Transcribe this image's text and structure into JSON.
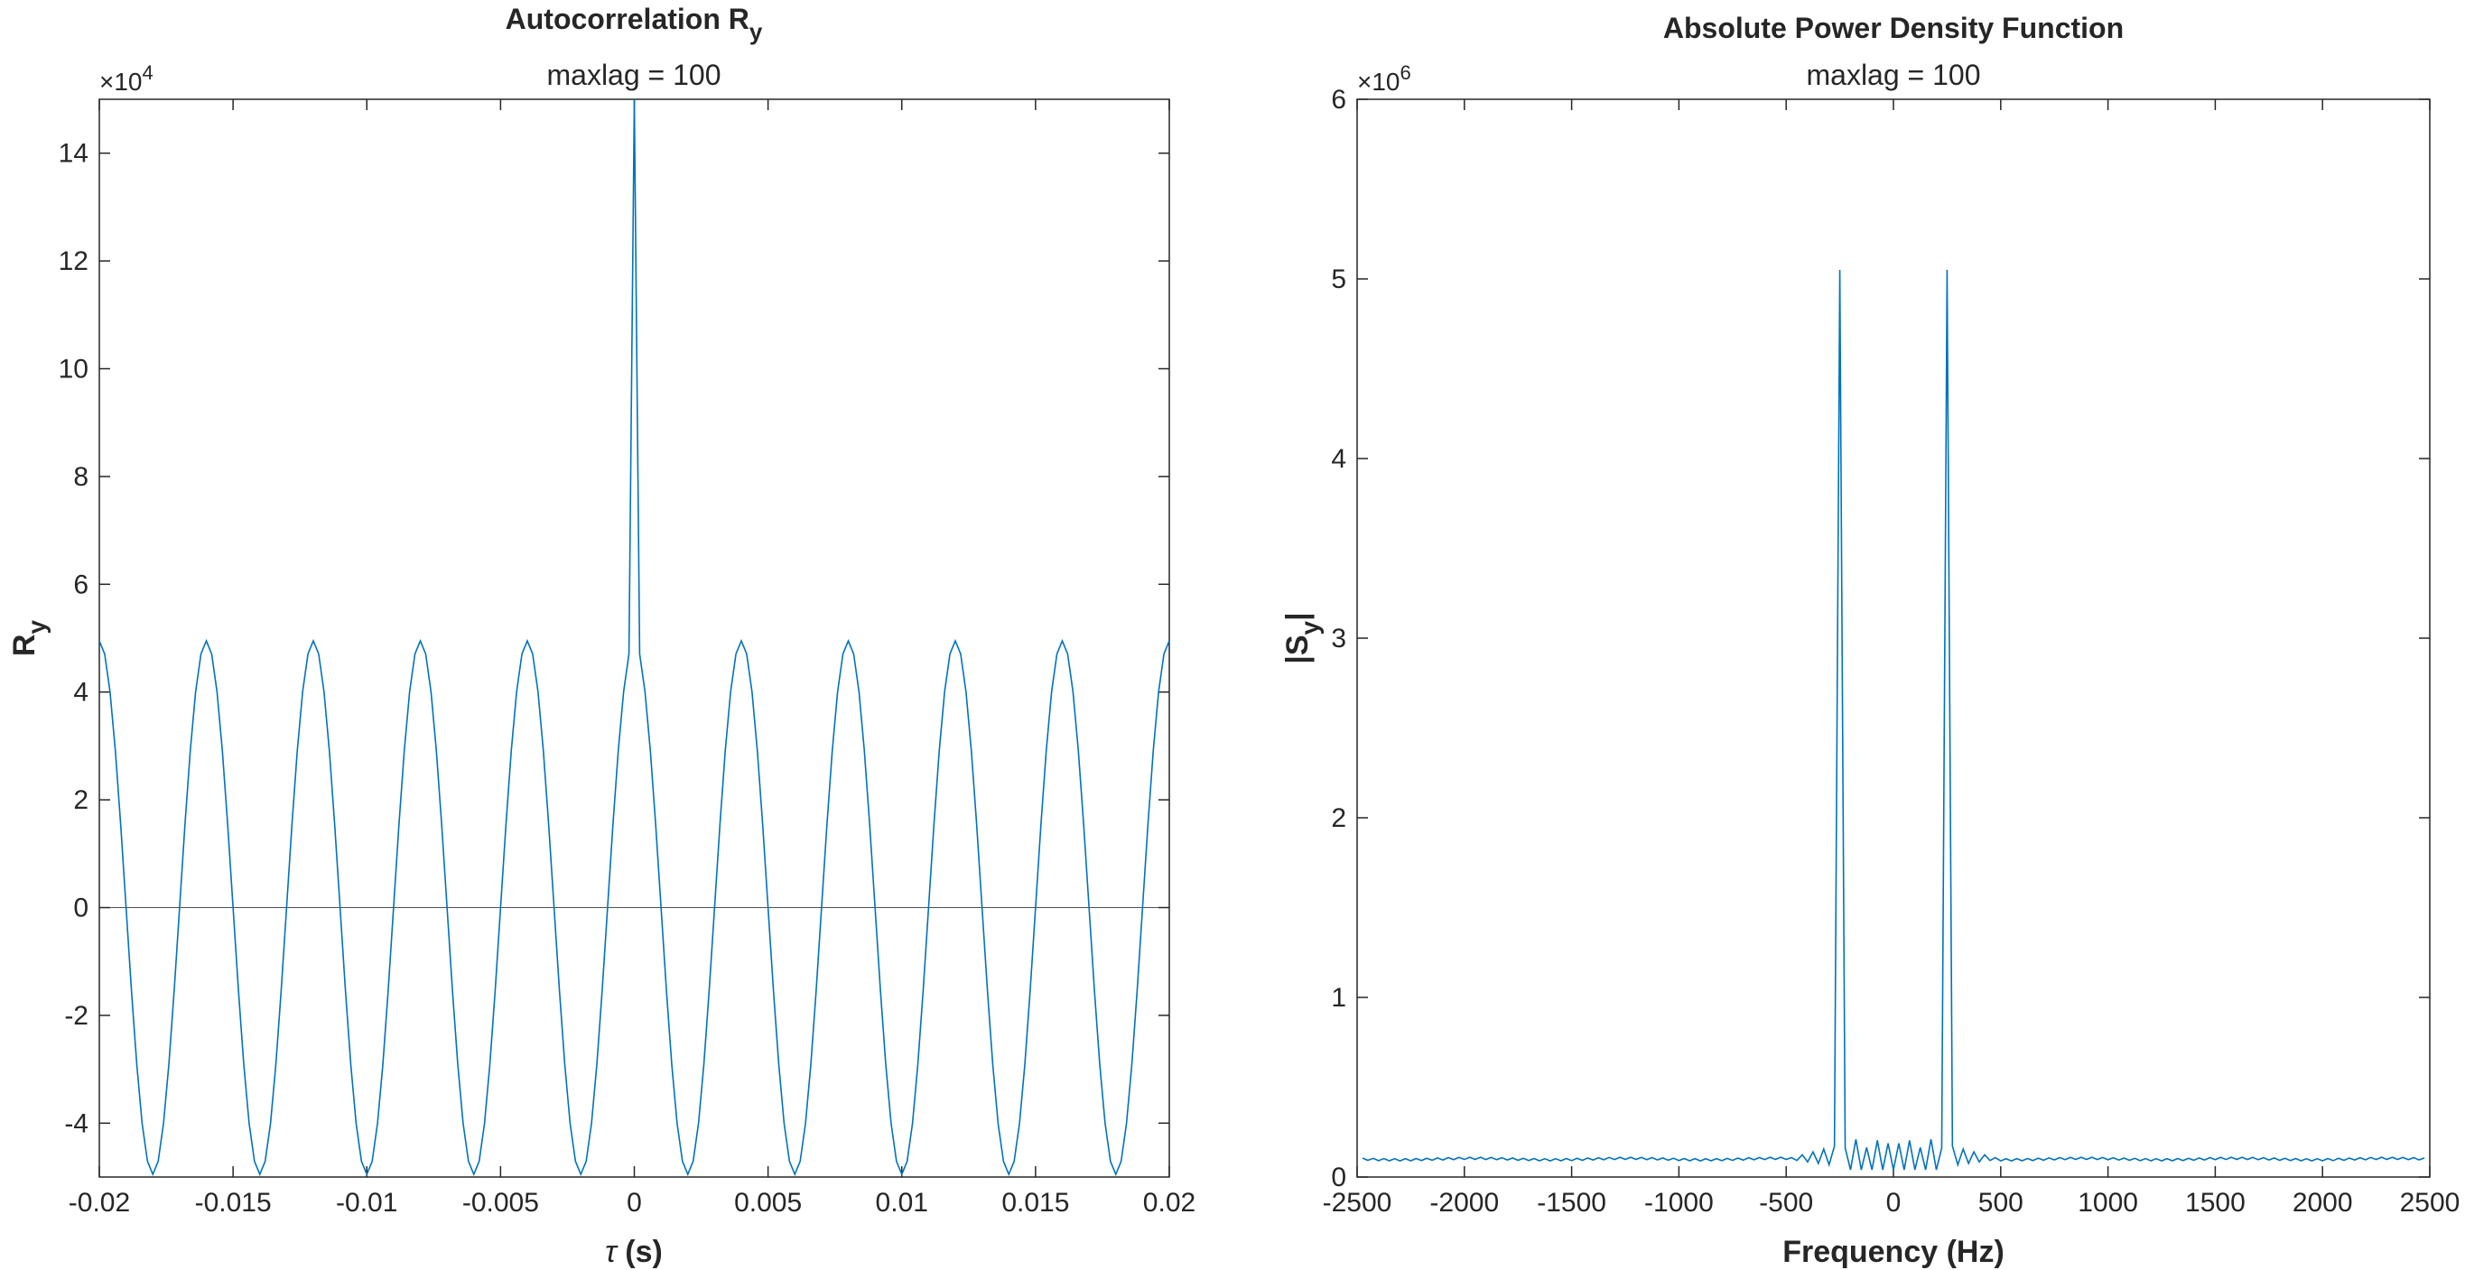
{
  "chart_data": [
    {
      "type": "line",
      "title": "Autocorrelation R",
      "title_subscript": "y",
      "subtitle": "maxlag = 100",
      "xlabel_symbol": "τ",
      "xlabel": "(s)",
      "ylabel": "R",
      "ylabel_subscript": "y",
      "xlim": [
        -0.02,
        0.02
      ],
      "ylim": [
        -50000,
        150000
      ],
      "y_exponent": "×10",
      "y_exponent_power": "4",
      "xticks": [
        -0.02,
        -0.015,
        -0.01,
        -0.005,
        0,
        0.005,
        0.01,
        0.015,
        0.02
      ],
      "xtick_labels": [
        "-0.02",
        "-0.015",
        "-0.01",
        "-0.005",
        "0",
        "0.005",
        "0.01",
        "0.015",
        "0.02"
      ],
      "yticks": [
        -40000,
        -20000,
        0,
        20000,
        40000,
        60000,
        80000,
        100000,
        120000,
        140000
      ],
      "ytick_labels": [
        "-4",
        "-2",
        "0",
        "2",
        "4",
        "6",
        "8",
        "10",
        "12",
        "14"
      ],
      "reference_line_y": 0,
      "grid": false,
      "series_color": "#0072BD",
      "series_model": {
        "lag_step_s": 0.0002,
        "maxlag": 100,
        "sinusoid_amplitude": 49500,
        "sinusoid_period_s": 0.004,
        "peak_at_zero": 150000
      }
    },
    {
      "type": "line",
      "title": "Absolute Power Density Function",
      "subtitle": "maxlag = 100",
      "xlabel": "Frequency (Hz)",
      "ylabel": "|S",
      "ylabel_subscript": "y",
      "ylabel_suffix": "|",
      "xlim": [
        -2500,
        2500
      ],
      "ylim": [
        0,
        6000000
      ],
      "y_exponent": "×10",
      "y_exponent_power": "6",
      "xticks": [
        -2500,
        -2000,
        -1500,
        -1000,
        -500,
        0,
        500,
        1000,
        1500,
        2000,
        2500
      ],
      "xtick_labels": [
        "-2500",
        "-2000",
        "-1500",
        "-1000",
        "-500",
        "0",
        "500",
        "1000",
        "1500",
        "2000",
        "2500"
      ],
      "yticks": [
        0,
        1000000,
        2000000,
        3000000,
        4000000,
        5000000,
        6000000
      ],
      "ytick_labels": [
        "0",
        "1",
        "2",
        "3",
        "4",
        "5",
        "6"
      ],
      "grid": false,
      "series_color": "#0072BD",
      "series_model": {
        "freq_range_hz": [
          -2475,
          2475
        ],
        "peak_freqs_hz": [
          -250,
          250
        ],
        "peak_value": 5050000,
        "baseline": 100000,
        "step_hz": 25
      }
    }
  ]
}
